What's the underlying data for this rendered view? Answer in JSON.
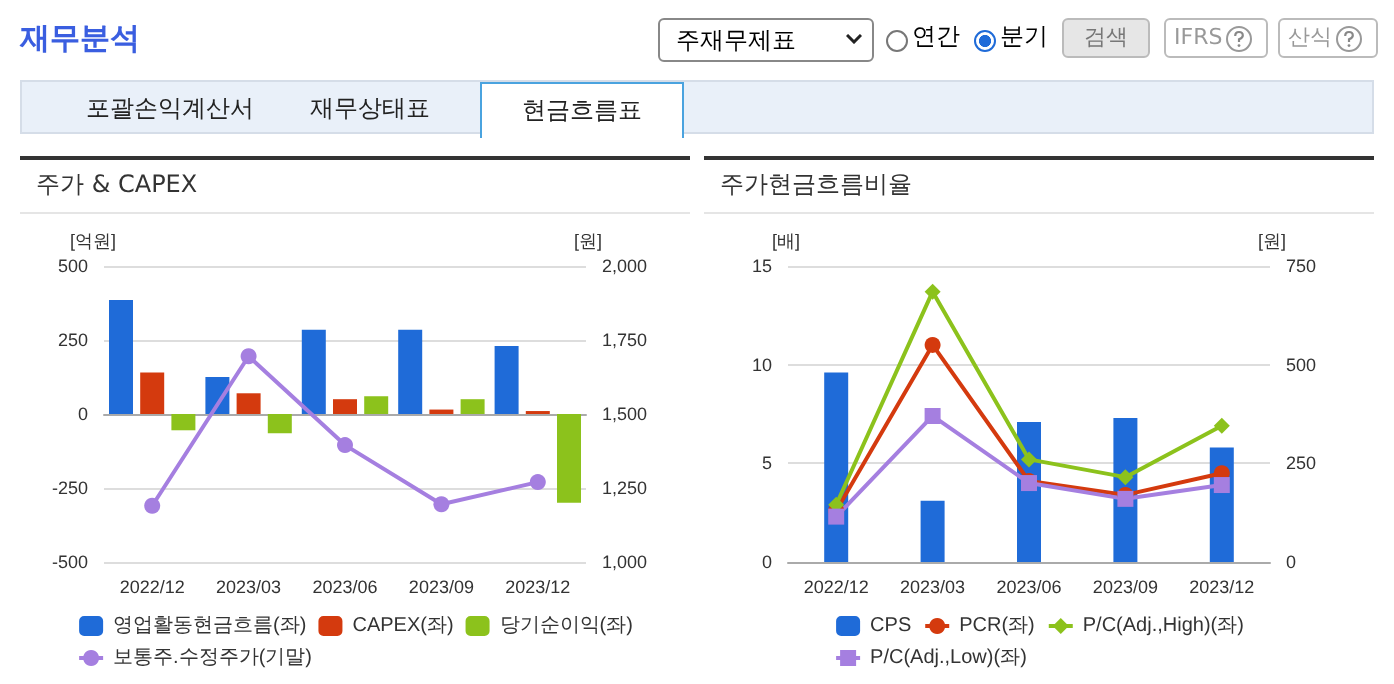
{
  "chart_data": [
    {
      "type": "bar",
      "title": "주가 & CAPEX",
      "ylabel": "[억원]",
      "y2label": "[원]",
      "annotations": [
        "재무분석",
        "주재무제표",
        "연간",
        "분기",
        "검색",
        "IFRS",
        "산식",
        "포괄손익계산서",
        "재무상태표",
        "현금흐름표"
      ],
      "categories": [
        "2022/12",
        "2023/03",
        "2023/06",
        "2023/09",
        "2023/12"
      ],
      "series": [
        {
          "name": "영업활동현금흐름(좌)",
          "color": "#1f6bd8",
          "values": [
            385,
            125,
            285,
            285,
            230
          ]
        },
        {
          "name": "CAPEX(좌)",
          "color": "#d43a0e",
          "values": [
            140,
            70,
            50,
            15,
            10
          ]
        },
        {
          "name": "당기순이익(좌)",
          "color": "#8cc21c",
          "values": [
            -55,
            -65,
            60,
            50,
            -300
          ]
        },
        {
          "name": "보통주.수정주가(기말)",
          "type": "line",
          "axis": "y2",
          "marker": "circle",
          "color": "#a57fe0",
          "values": [
            1190,
            1695,
            1395,
            1195,
            1270
          ]
        }
      ],
      "ylim": [
        -500,
        500
      ],
      "yticks": [
        -500,
        -250,
        0,
        250,
        500
      ],
      "y2lim": [
        1000,
        2000
      ],
      "y2ticks": [
        {
          "value": 1000,
          "label": "1,000"
        },
        {
          "value": 1250,
          "label": "1,250"
        },
        {
          "value": 1500,
          "label": "1,500"
        },
        {
          "value": 1750,
          "label": "1,750"
        },
        {
          "value": 2000,
          "label": "2,000"
        }
      ],
      "grid": "y",
      "legend": "bottom"
    },
    {
      "type": "line",
      "title": "주가현금흐름비율",
      "ylabel": "[배]",
      "y2label": "[원]",
      "categories": [
        "2022/12",
        "2023/03",
        "2023/06",
        "2023/09",
        "2023/12"
      ],
      "series": [
        {
          "name": "CPS",
          "type": "bar",
          "axis": "y2",
          "color": "#1f6bd8",
          "values": [
            480,
            155,
            355,
            365,
            290
          ]
        },
        {
          "name": "PCR(좌)",
          "marker": "circle",
          "color": "#d43a0e",
          "values": [
            2.6,
            11.0,
            4.1,
            3.4,
            4.5
          ]
        },
        {
          "name": "P/C(Adj.,High)(좌)",
          "marker": "diamond",
          "color": "#8cc21c",
          "values": [
            2.9,
            13.7,
            5.2,
            4.3,
            6.9
          ]
        },
        {
          "name": "P/C(Adj.,Low)(좌)",
          "marker": "square",
          "color": "#a57fe0",
          "values": [
            2.3,
            7.4,
            4.0,
            3.2,
            3.9
          ]
        }
      ],
      "ylim": [
        0,
        15
      ],
      "yticks": [
        0,
        5,
        10,
        15
      ],
      "y2lim": [
        0,
        750
      ],
      "y2ticks": [
        0,
        250,
        500,
        750
      ],
      "grid": "y",
      "legend": "bottom"
    }
  ]
}
